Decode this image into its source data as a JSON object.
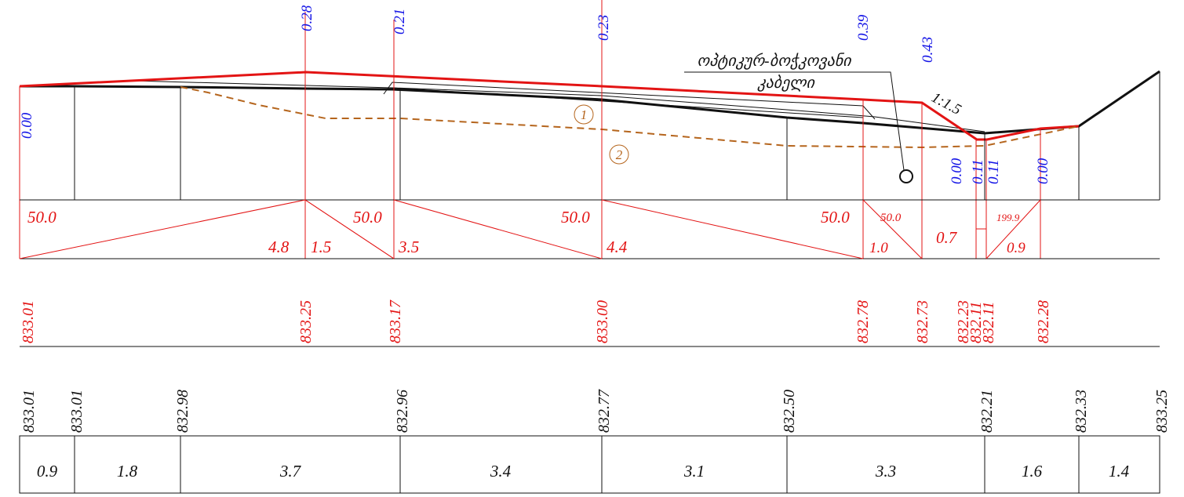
{
  "colors": {
    "design_line": "#e31414",
    "ground_line": "#111111",
    "utility_line": "#b5651d",
    "annotation_blue": "#1414e6"
  },
  "top_markers": [
    "0.28",
    "0.21",
    "0.23",
    "0.39",
    "0.43"
  ],
  "left_marker": "0.00",
  "low_markers": [
    "0.00",
    "0.11",
    "0.11",
    "0.00"
  ],
  "cable_label": {
    "line1": "ოპტიკურ-ბოჭკოვანი",
    "line2": "კაბელი"
  },
  "slope_label": "1:1.5",
  "utility_markers": [
    "1",
    "2"
  ],
  "slope_row": {
    "top": [
      "50.0",
      "50.0",
      "50.0",
      "50.0",
      "50.0",
      "199.9"
    ],
    "bottom": [
      "4.8",
      "1.5",
      "3.5",
      "4.4",
      "1.0",
      "0.7",
      "0.9"
    ]
  },
  "design_elevations": [
    "833.01",
    "833.25",
    "833.17",
    "833.00",
    "832.78",
    "832.73",
    "832.23",
    "832.11",
    "832.11",
    "832.28"
  ],
  "ground_elevations": [
    "833.01",
    "833.01",
    "832.98",
    "832.96",
    "832.77",
    "832.50",
    "832.21",
    "832.33",
    "833.25"
  ],
  "distances": [
    "0.9",
    "1.8",
    "3.7",
    "3.4",
    "3.1",
    "3.3",
    "1.6",
    "1.4"
  ]
}
